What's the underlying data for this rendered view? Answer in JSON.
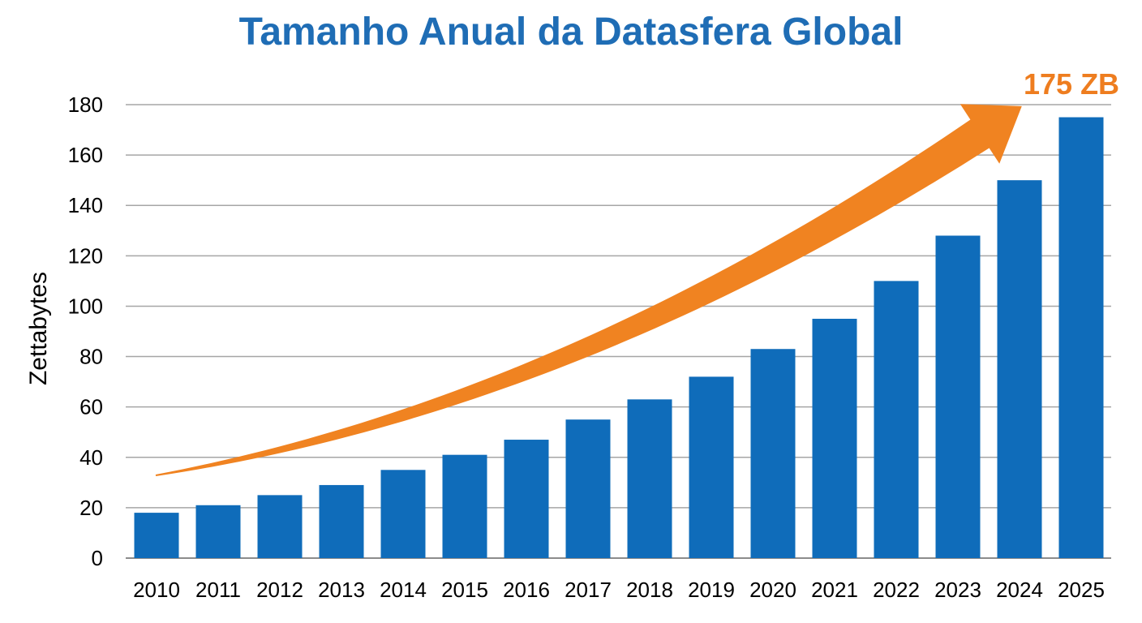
{
  "chart_data": {
    "type": "bar",
    "title": "Tamanho Anual da Datasfera Global",
    "xlabel": "",
    "ylabel": "Zettabytes",
    "categories": [
      "2010",
      "2011",
      "2012",
      "2013",
      "2014",
      "2015",
      "2016",
      "2017",
      "2018",
      "2019",
      "2020",
      "2021",
      "2022",
      "2023",
      "2024",
      "2025"
    ],
    "values": [
      18,
      21,
      25,
      29,
      35,
      41,
      47,
      55,
      63,
      72,
      83,
      95,
      110,
      128,
      150,
      175
    ],
    "ylim": [
      0,
      180
    ],
    "yticks": [
      0,
      20,
      40,
      60,
      80,
      100,
      120,
      140,
      160,
      180
    ],
    "grid": true,
    "annotation": {
      "text": "175 ZB",
      "description": "orange curved growth arrow pointing to final bar"
    },
    "colors": {
      "title": "#1F6DB5",
      "bar": "#0F6CBA",
      "arrow": "#F08321",
      "annotation": "#EE7D1F",
      "grid": "#A6A6A6"
    }
  }
}
